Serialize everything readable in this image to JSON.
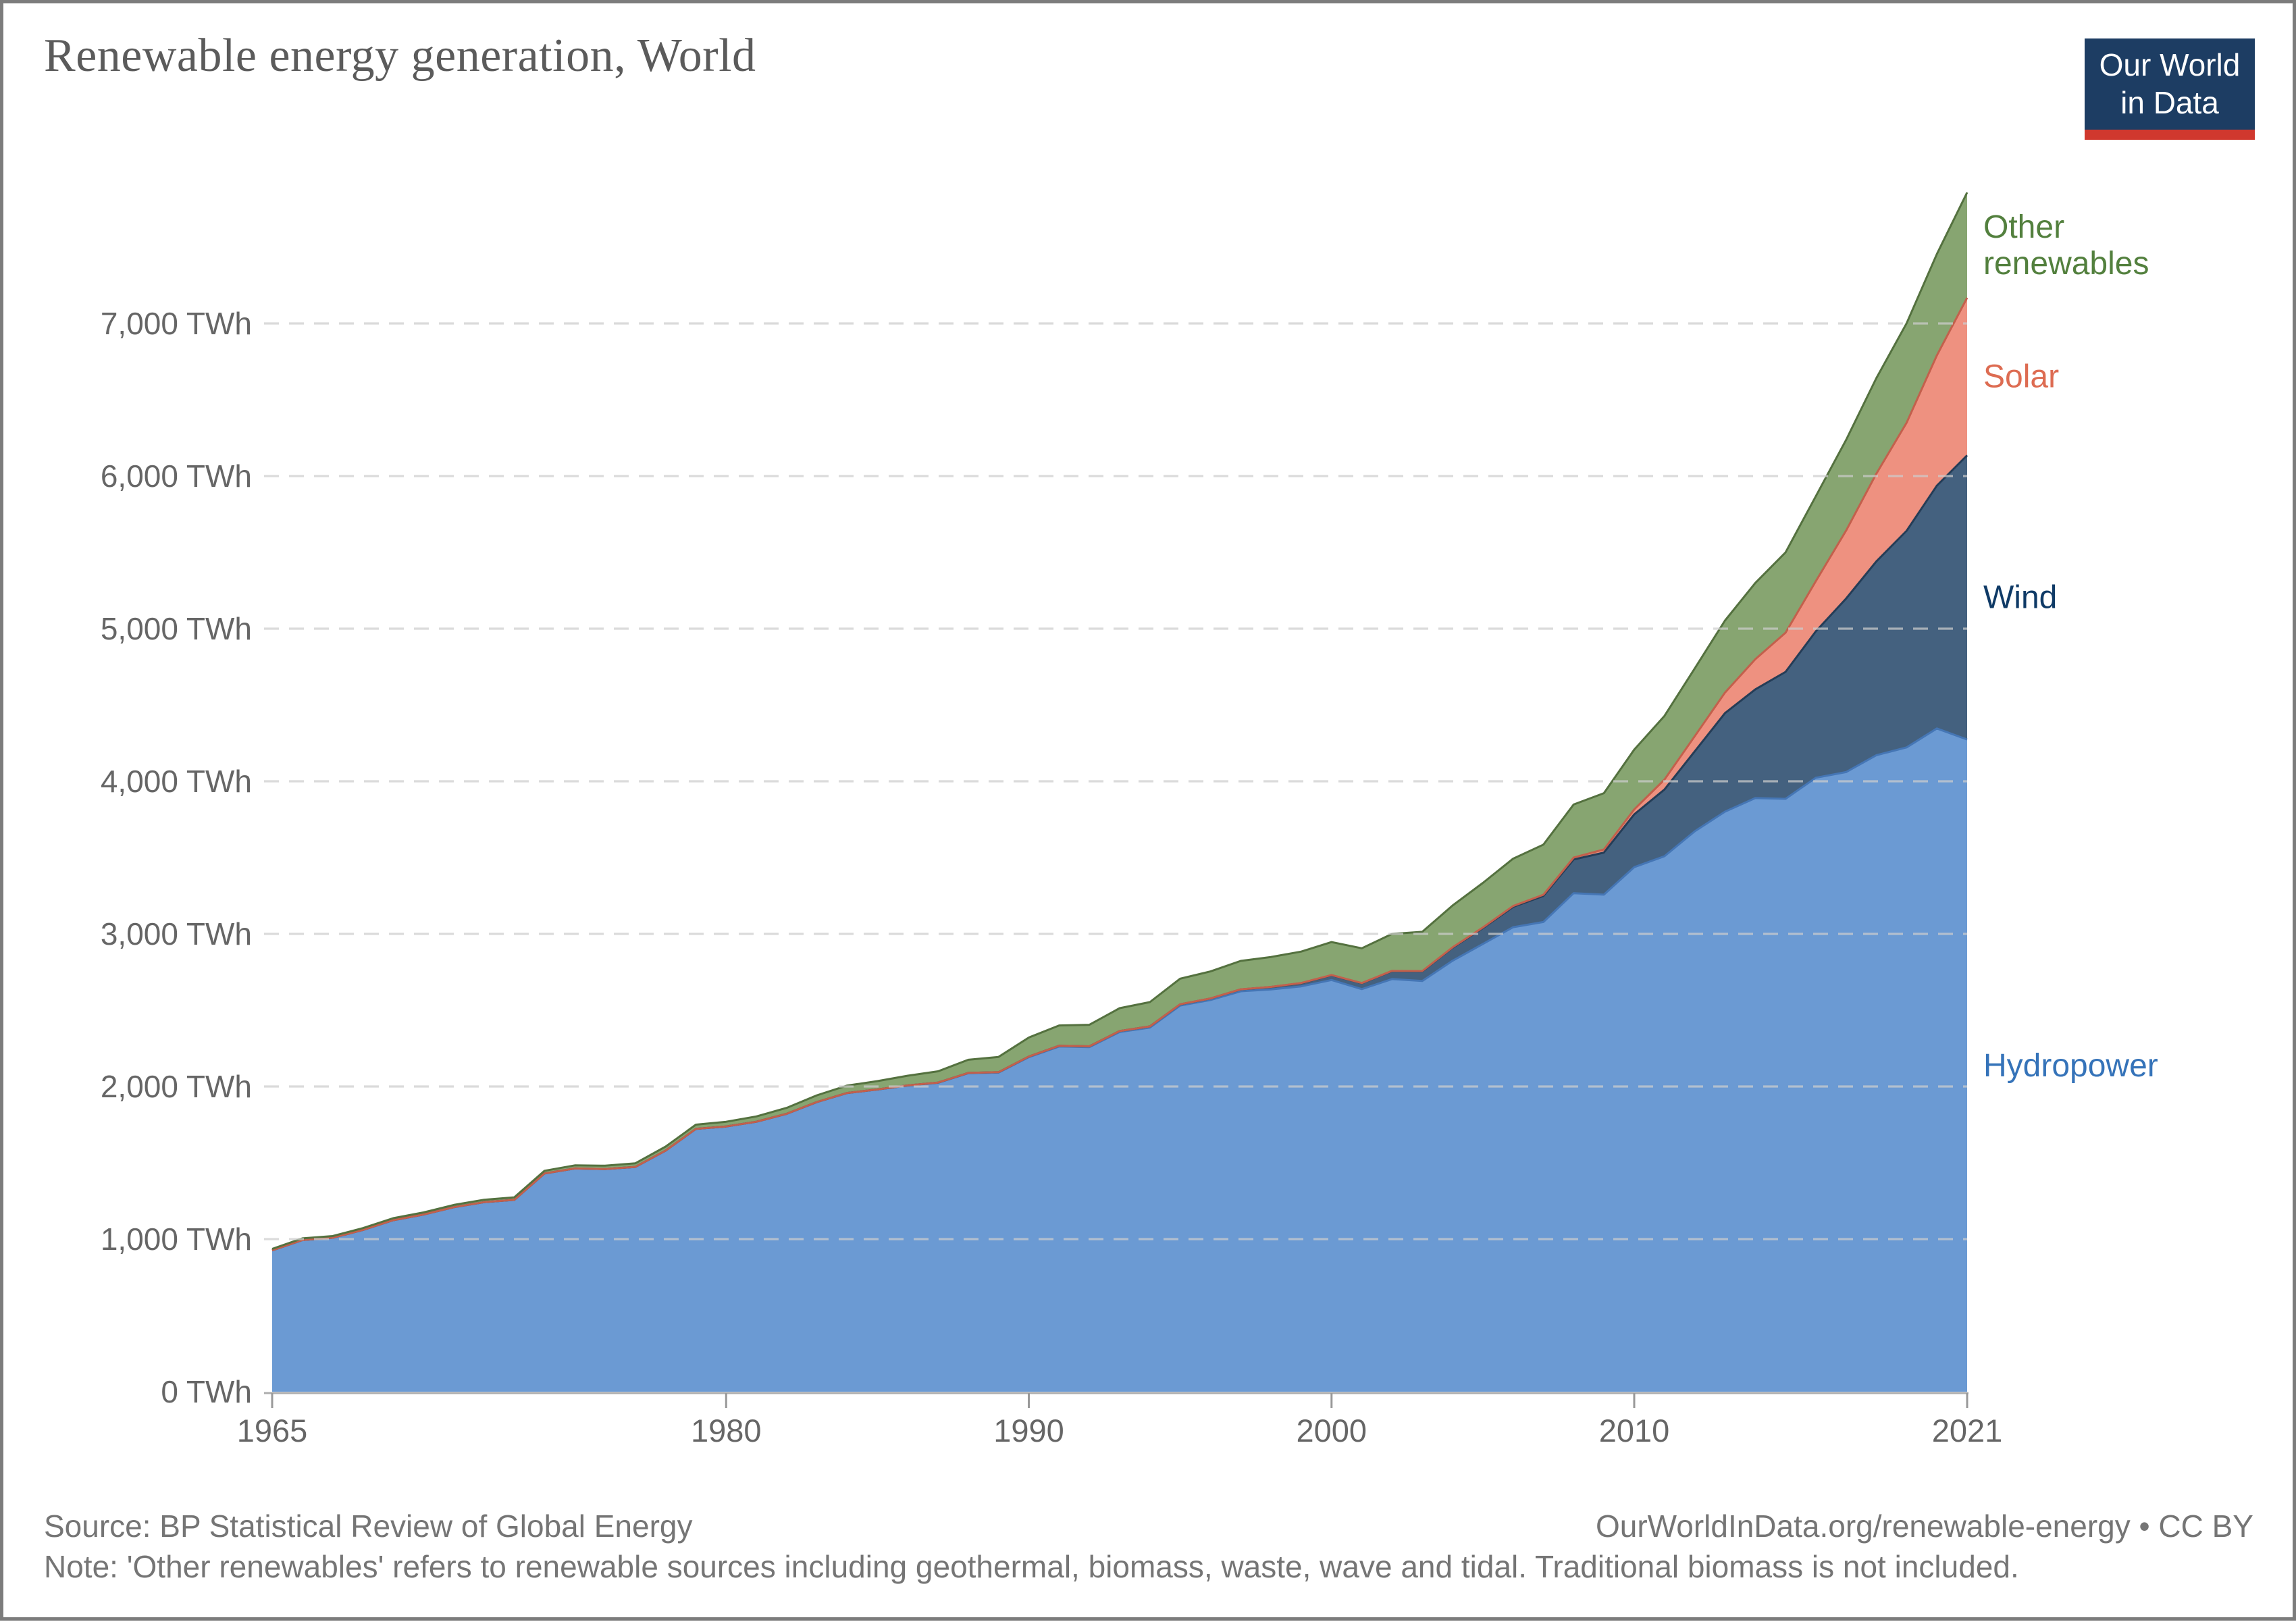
{
  "header": {
    "title": "Renewable energy generation, World",
    "logo": {
      "line1": "Our World",
      "line2": "in Data"
    }
  },
  "footer": {
    "source": "Source: BP Statistical Review of Global Energy",
    "attribution": "OurWorldInData.org/renewable-energy • CC BY",
    "note": "Note: 'Other renewables' refers to renewable sources including geothermal, biomass, waste, wave and tidal. Traditional biomass is not included."
  },
  "colors": {
    "title_text": "#5b5b5b",
    "axis_text": "#666666",
    "footer_text": "#757575",
    "gridline": "#cdcdcd",
    "axis_line": "#adadad",
    "tick": "#999999",
    "logo_bg": "#1d3d63",
    "logo_red": "#d0382e",
    "page_border": "#7c7c7c"
  },
  "chart_data": {
    "type": "area",
    "stacked": true,
    "title": "Renewable energy generation, World",
    "unit": "TWh",
    "xlabel": "",
    "ylabel": "",
    "ylim": [
      0,
      7900
    ],
    "grid": "dashed-horizontal",
    "legend_position": "right-edge-inline-labels",
    "x": [
      1965,
      1966,
      1967,
      1968,
      1969,
      1970,
      1971,
      1972,
      1973,
      1974,
      1975,
      1976,
      1977,
      1978,
      1979,
      1980,
      1981,
      1982,
      1983,
      1984,
      1985,
      1986,
      1987,
      1988,
      1989,
      1990,
      1991,
      1992,
      1993,
      1994,
      1995,
      1996,
      1997,
      1998,
      1999,
      2000,
      2001,
      2002,
      2003,
      2004,
      2005,
      2006,
      2007,
      2008,
      2009,
      2010,
      2011,
      2012,
      2013,
      2014,
      2015,
      2016,
      2017,
      2018,
      2019,
      2020,
      2021
    ],
    "x_tick_years": [
      1965,
      1980,
      1990,
      2000,
      2010,
      2021
    ],
    "y_tick_values": [
      0,
      1000,
      2000,
      3000,
      4000,
      5000,
      6000,
      7000
    ],
    "y_tick_labels": [
      "0 TWh",
      "1,000 TWh",
      "2,000 TWh",
      "3,000 TWh",
      "4,000 TWh",
      "5,000 TWh",
      "6,000 TWh",
      "7,000 TWh"
    ],
    "series": [
      {
        "name": "Hydropower",
        "label_lines": [
          "Hydropower"
        ],
        "fill": "#6b9ad3",
        "stroke": "#4576b5",
        "label_color": "#3573b9",
        "values": [
          926,
          994,
          1009,
          1060,
          1124,
          1161,
          1209,
          1242,
          1257,
          1430,
          1463,
          1459,
          1473,
          1580,
          1722,
          1738,
          1769,
          1821,
          1898,
          1957,
          1980,
          2006,
          2024,
          2087,
          2091,
          2192,
          2262,
          2258,
          2357,
          2386,
          2530,
          2567,
          2624,
          2636,
          2656,
          2698,
          2638,
          2704,
          2691,
          2824,
          2934,
          3044,
          3078,
          3267,
          3257,
          3437,
          3509,
          3672,
          3801,
          3890,
          3885,
          4023,
          4060,
          4171,
          4222,
          4346,
          4274
        ]
      },
      {
        "name": "Wind",
        "label_lines": [
          "Wind"
        ],
        "fill": "#44617f",
        "stroke": "#253d57",
        "label_color": "#0f3a66",
        "values": [
          0,
          0,
          0,
          0,
          0,
          0,
          0,
          0,
          0,
          0,
          0,
          0,
          0,
          0,
          0,
          0,
          0.1,
          0.2,
          0.3,
          0.4,
          0.6,
          0.9,
          1.5,
          2.1,
          3,
          3.9,
          4.6,
          5.1,
          6.1,
          7.6,
          8.3,
          9.4,
          12.3,
          16,
          21.2,
          31.4,
          38.4,
          52.3,
          63.4,
          85.1,
          104.1,
          132.9,
          170.7,
          220.6,
          275.9,
          346.4,
          436.8,
          523.8,
          645.5,
          712,
          831.8,
          959.5,
          1136.8,
          1269.9,
          1419.6,
          1591.2,
          1861.9
        ]
      },
      {
        "name": "Solar",
        "label_lines": [
          "Solar"
        ],
        "fill": "#ee9180",
        "stroke": "#c3604c",
        "label_color": "#dd6c52",
        "values": [
          0,
          0,
          0,
          0,
          0,
          0,
          0,
          0,
          0,
          0,
          0,
          0,
          0,
          0,
          0,
          0,
          0,
          0,
          0,
          0,
          0,
          0,
          0,
          0,
          0,
          0.1,
          0.2,
          0.2,
          0.3,
          0.4,
          0.5,
          0.5,
          0.6,
          0.7,
          0.9,
          1.1,
          1.4,
          1.7,
          2.1,
          2.8,
          4,
          5.9,
          8.1,
          12.4,
          20.4,
          32.2,
          65.3,
          99.5,
          134.5,
          197.7,
          256.8,
          328.2,
          445.4,
          574.2,
          707.9,
          853.7,
          1032.5
        ]
      },
      {
        "name": "Other renewables",
        "label_lines": [
          "Other",
          "renewables"
        ],
        "fill": "#87a571",
        "stroke": "#54713f",
        "label_color": "#53803e",
        "values": [
          10,
          11,
          11,
          12,
          13,
          14,
          15,
          16,
          17,
          18,
          20,
          22,
          24,
          26,
          28,
          31,
          35,
          39,
          44,
          49,
          55,
          64,
          74,
          86,
          100,
          125,
          133,
          141,
          150,
          159,
          168,
          177,
          186,
          196,
          206,
          216,
          228,
          242,
          257,
          274,
          292,
          310,
          328,
          348,
          369,
          392,
          417,
          444,
          472,
          500,
          526,
          557,
          594,
          626,
          652,
          664,
          690
        ]
      }
    ]
  }
}
